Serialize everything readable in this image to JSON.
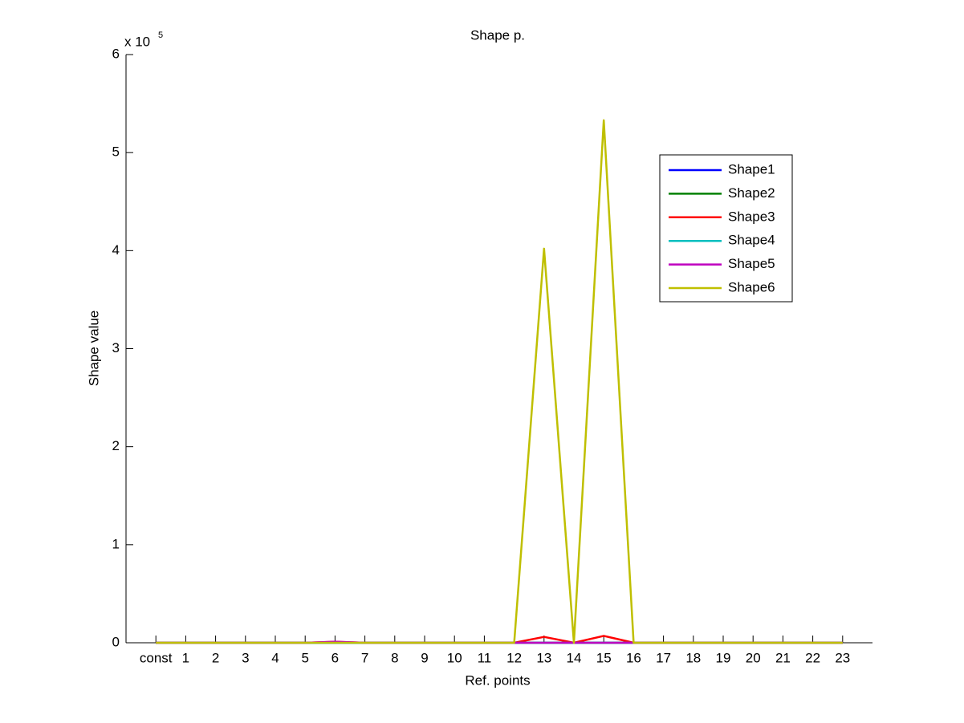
{
  "chart_data": {
    "type": "line",
    "title": "Shape p.",
    "x_label": "Ref. points",
    "y_label": "Shape value",
    "y_multiplier": "x 10",
    "y_exponent": "5",
    "categories": [
      "const",
      "1",
      "2",
      "3",
      "4",
      "5",
      "6",
      "7",
      "8",
      "9",
      "10",
      "11",
      "12",
      "13",
      "14",
      "15",
      "16",
      "17",
      "18",
      "19",
      "20",
      "21",
      "22",
      "23"
    ],
    "ylim": [
      0,
      6
    ],
    "yticks": [
      0,
      1,
      2,
      3,
      4,
      5,
      6
    ],
    "grid": false,
    "legend": "upper right",
    "series": [
      {
        "name": "Shape1",
        "color": "#0000ff",
        "values": [
          0,
          0,
          0,
          0,
          0,
          0,
          0,
          0,
          0,
          0,
          0,
          0,
          0,
          0,
          0,
          0,
          0,
          0,
          0,
          0,
          0,
          0,
          0,
          0
        ]
      },
      {
        "name": "Shape2",
        "color": "#008000",
        "values": [
          0,
          0,
          0,
          0,
          0,
          0,
          0,
          0,
          0,
          0,
          0,
          0,
          0,
          0,
          0,
          0,
          0,
          0,
          0,
          0,
          0,
          0,
          0,
          0
        ]
      },
      {
        "name": "Shape3",
        "color": "#ff0000",
        "values": [
          0,
          0,
          0,
          0,
          0,
          0,
          0.01,
          0,
          0,
          0,
          0,
          0,
          0,
          0.06,
          0,
          0.07,
          0,
          0,
          0,
          0,
          0,
          0,
          0,
          0
        ]
      },
      {
        "name": "Shape4",
        "color": "#00bfbf",
        "values": [
          0,
          0,
          0,
          0,
          0,
          0,
          0,
          0,
          0,
          0,
          0,
          0,
          0,
          0,
          0,
          0,
          0,
          0,
          0,
          0,
          0,
          0,
          0,
          0
        ]
      },
      {
        "name": "Shape5",
        "color": "#bf00bf",
        "values": [
          0,
          0,
          0,
          0,
          0,
          0,
          0.01,
          0,
          0,
          0,
          0,
          0,
          0,
          0,
          0,
          0,
          0,
          0,
          0,
          0,
          0,
          0,
          0,
          0
        ]
      },
      {
        "name": "Shape6",
        "color": "#bfbf00",
        "values": [
          0,
          0,
          0,
          0,
          0,
          0,
          0,
          0,
          0,
          0,
          0,
          0,
          0,
          4.02,
          0,
          5.33,
          0,
          0,
          0,
          0,
          0,
          0,
          0,
          0
        ]
      }
    ]
  }
}
